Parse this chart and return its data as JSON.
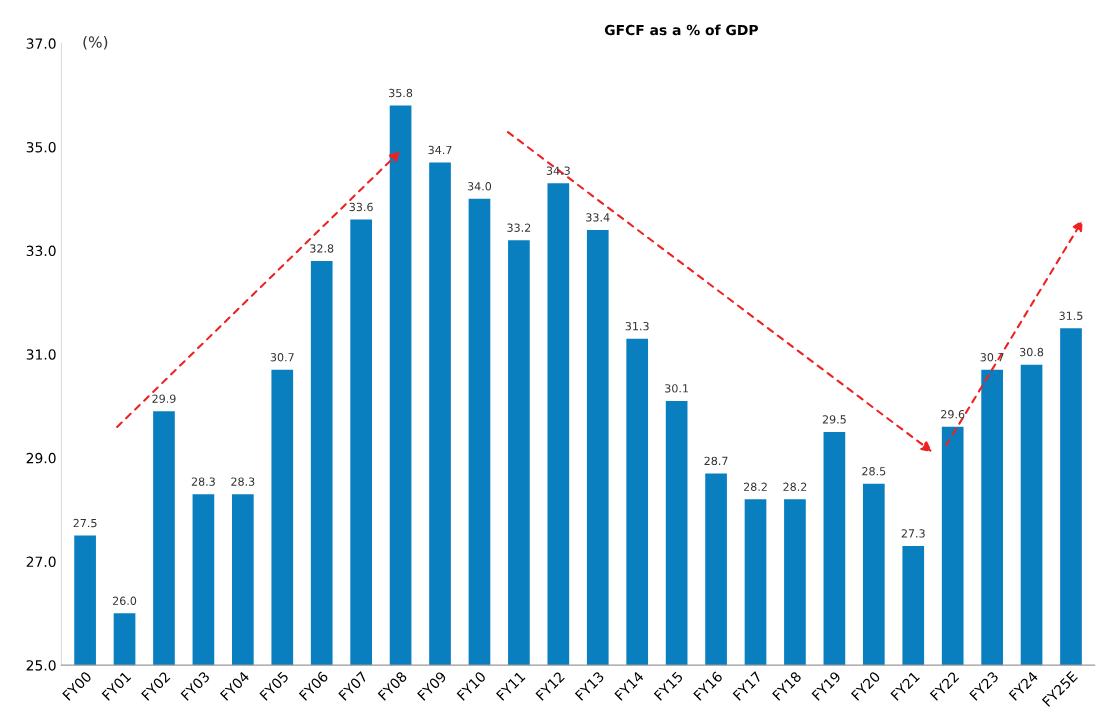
{
  "chart_data": {
    "type": "bar",
    "title": "GFCF as a % of GDP",
    "ylabel": "(%)",
    "categories": [
      "FY00",
      "FY01",
      "FY02",
      "FY03",
      "FY04",
      "FY05",
      "FY06",
      "FY07",
      "FY08",
      "FY09",
      "FY10",
      "FY11",
      "FY12",
      "FY13",
      "FY14",
      "FY15",
      "FY16",
      "FY17",
      "FY18",
      "FY19",
      "FY20",
      "FY21",
      "FY22",
      "FY23",
      "FY24",
      "FY25E"
    ],
    "values": [
      27.5,
      26.0,
      29.9,
      28.3,
      28.3,
      30.7,
      32.8,
      33.6,
      35.8,
      34.7,
      34.0,
      33.2,
      34.3,
      33.4,
      31.3,
      30.1,
      28.7,
      28.2,
      28.2,
      29.5,
      28.5,
      27.3,
      29.6,
      30.7,
      30.8,
      31.5
    ],
    "color": "#0a7fc0",
    "ylim": [
      25,
      37
    ],
    "yticks": [
      {
        "value": 25,
        "label": "25.0"
      },
      {
        "value": 27,
        "label": "27.0"
      },
      {
        "value": 29,
        "label": "29.0"
      },
      {
        "value": 31,
        "label": "31.0"
      },
      {
        "value": 33,
        "label": "33.0"
      },
      {
        "value": 35,
        "label": "35.0"
      },
      {
        "value": 37,
        "label": "37.0"
      }
    ],
    "value_labels": [
      "27.5",
      "26.0",
      "29.9",
      "28.3",
      "28.3",
      "30.7",
      "32.8",
      "33.6",
      "35.8",
      "34.7",
      "34.0",
      "33.2",
      "34.3",
      "33.4",
      "31.3",
      "30.1",
      "28.7",
      "28.2",
      "28.2",
      "29.5",
      "28.5",
      "27.3",
      "29.6",
      "30.7",
      "30.8",
      "31.5"
    ],
    "grid": false
  }
}
